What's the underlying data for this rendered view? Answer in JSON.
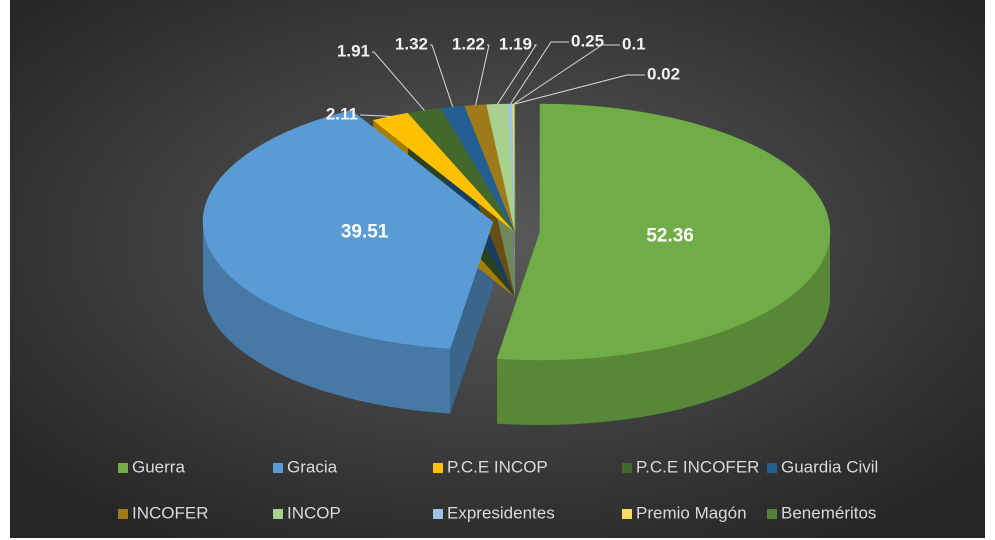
{
  "chart_data": {
    "type": "pie3d",
    "categories": [
      "Guerra",
      "Gracia",
      "P.C.E INCOP",
      "P.C.E INCOFER",
      "Guardia Civil",
      "INCOFER",
      "INCOP",
      "Expresidentes",
      "Premio Magón",
      "Beneméritos"
    ],
    "values": [
      52.36,
      39.51,
      2.11,
      1.91,
      1.32,
      1.22,
      1.19,
      0.25,
      0.1,
      0.02
    ],
    "colors": [
      "#70ad47",
      "#5b9bd5",
      "#ffc000",
      "#43682b",
      "#255e91",
      "#9e7a1b",
      "#a9d18e",
      "#9dc3e6",
      "#ffd966",
      "#548235"
    ],
    "legend": "bottom"
  }
}
